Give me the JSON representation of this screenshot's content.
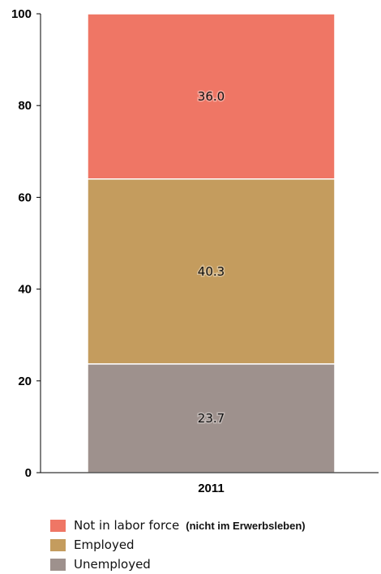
{
  "chart_data": {
    "type": "bar",
    "stacked": true,
    "categories": [
      "2011"
    ],
    "series": [
      {
        "name": "Unemployed",
        "note": "",
        "values": [
          23.7
        ],
        "color": "#9e918d"
      },
      {
        "name": "Employed",
        "note": "",
        "values": [
          40.3
        ],
        "color": "#c49c5e"
      },
      {
        "name": "Not in labor force",
        "note": "(nicht im Erwerbsleben)",
        "values": [
          36.0
        ],
        "color": "#ef7665"
      }
    ],
    "data_labels": [
      "23.7",
      "40.3",
      "36.0"
    ],
    "ylim": [
      0,
      100
    ],
    "yticks": [
      0,
      20,
      40,
      60,
      80,
      100
    ],
    "grid": false,
    "legend_position": "bottom-left",
    "title": "",
    "xlabel": "",
    "ylabel": ""
  }
}
